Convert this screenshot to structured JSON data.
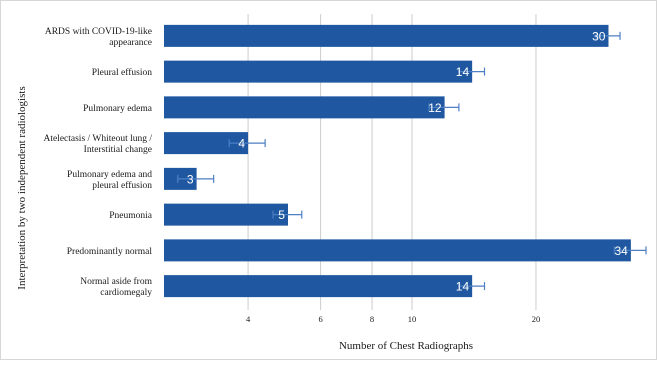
{
  "chart_data": {
    "type": "bar",
    "orientation": "horizontal",
    "x_scale": "log",
    "categories": [
      [
        "ARDS with COVID-19-like",
        "appearance"
      ],
      [
        "Pleural effusion"
      ],
      [
        "Pulmonary edema"
      ],
      [
        "Atelectasis / Whiteout lung /",
        "Interstitial change"
      ],
      [
        "Pulmonary edema and",
        "pleural effusion"
      ],
      [
        "Pneumonia"
      ],
      [
        "Predominantly normal"
      ],
      [
        "Normal aside from",
        "cardiomegaly"
      ]
    ],
    "values": [
      30,
      14,
      12,
      4,
      3,
      5,
      34,
      14
    ],
    "error": [
      2,
      1,
      1,
      0.4,
      0.3,
      0.4,
      3,
      1
    ],
    "value_labels": [
      "30",
      "14",
      "12",
      "4",
      "3",
      "5",
      "34",
      "14"
    ],
    "xticks": [
      4,
      6,
      8,
      10,
      20
    ],
    "xtick_labels": [
      "4",
      "6",
      "8",
      "10",
      "20"
    ],
    "xlim": [
      2.5,
      37
    ],
    "xlabel": "Number of Chest Radiographs",
    "ylabel": "Interpretation by two independent radiologists",
    "grid": "vertical",
    "bar_color": "#1f58a0",
    "error_color": "#4d7fc4",
    "grid_color": "#cccccc"
  }
}
